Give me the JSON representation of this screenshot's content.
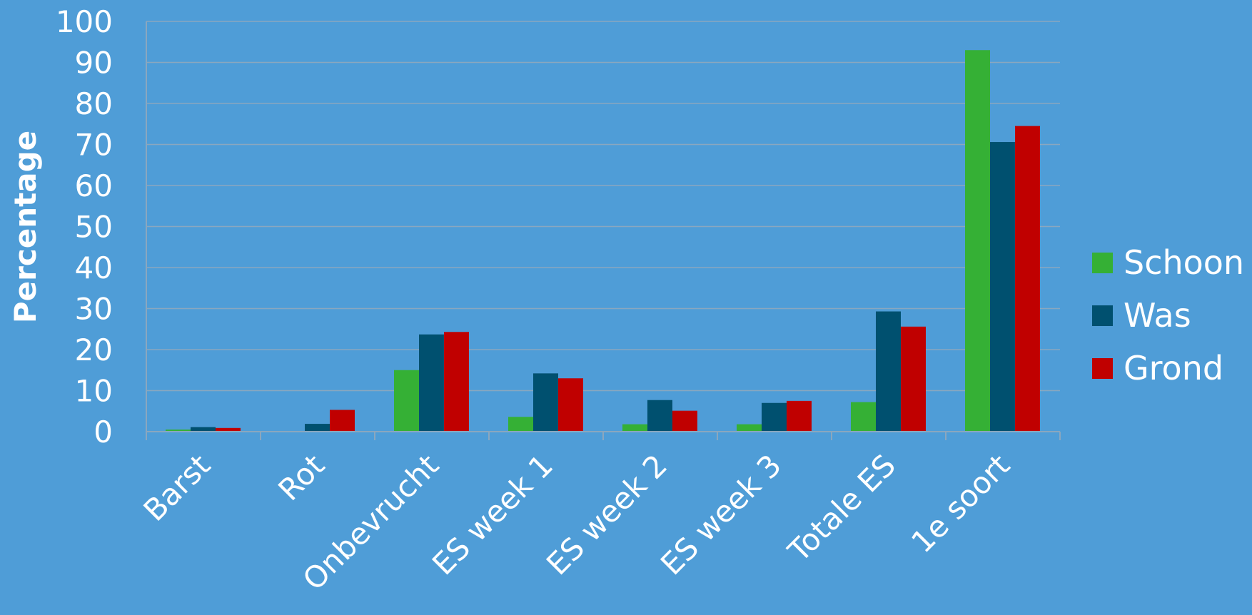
{
  "chart_data": {
    "type": "bar",
    "title": "",
    "xlabel": "",
    "ylabel": "Percentage",
    "ylim": [
      0,
      100
    ],
    "yticks": [
      0,
      10,
      20,
      30,
      40,
      50,
      60,
      70,
      80,
      90,
      100
    ],
    "grid": true,
    "legend_position": "right",
    "categories": [
      "Barst",
      "Rot",
      "Onbevrucht",
      "ES week 1",
      "ES week 2",
      "ES week 3",
      "Totale ES",
      "1e soort"
    ],
    "series": [
      {
        "name": "Schoon",
        "color": "#35b035",
        "values": [
          0.5,
          0,
          15,
          3.6,
          1.8,
          1.8,
          7.2,
          93
        ]
      },
      {
        "name": "Was",
        "color": "#00506f",
        "values": [
          1.1,
          1.9,
          23.7,
          14.2,
          7.7,
          7,
          29.3,
          70.6
        ]
      },
      {
        "name": "Grond",
        "color": "#c00000",
        "values": [
          0.9,
          5.3,
          24.3,
          13,
          5.1,
          7.5,
          25.6,
          74.5
        ]
      }
    ]
  }
}
